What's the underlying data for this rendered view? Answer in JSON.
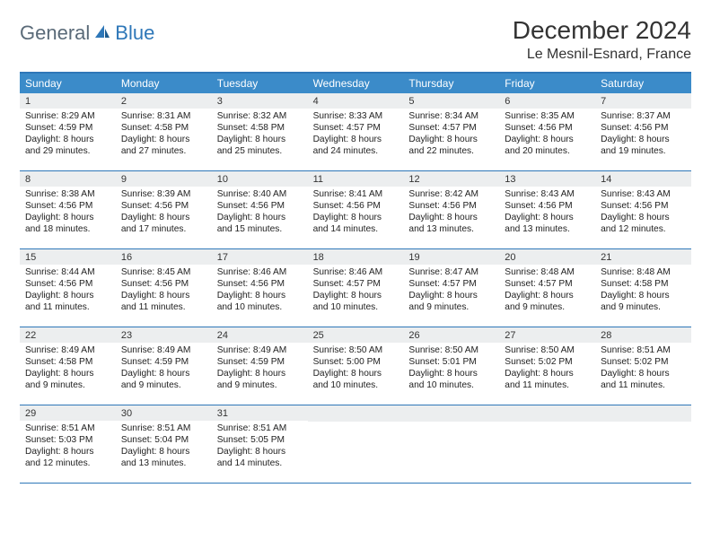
{
  "logo": {
    "general": "General",
    "blue": "Blue"
  },
  "title": "December 2024",
  "location": "Le Mesnil-Esnard, France",
  "colors": {
    "header_bg": "#3b8bc9",
    "border": "#2e77b8",
    "daynum_bg": "#eceeef",
    "text": "#222222",
    "logo_gray": "#5a6a78",
    "logo_blue": "#2e77b8"
  },
  "day_names": [
    "Sunday",
    "Monday",
    "Tuesday",
    "Wednesday",
    "Thursday",
    "Friday",
    "Saturday"
  ],
  "weeks": [
    [
      {
        "n": "1",
        "sr": "Sunrise: 8:29 AM",
        "ss": "Sunset: 4:59 PM",
        "d1": "Daylight: 8 hours",
        "d2": "and 29 minutes."
      },
      {
        "n": "2",
        "sr": "Sunrise: 8:31 AM",
        "ss": "Sunset: 4:58 PM",
        "d1": "Daylight: 8 hours",
        "d2": "and 27 minutes."
      },
      {
        "n": "3",
        "sr": "Sunrise: 8:32 AM",
        "ss": "Sunset: 4:58 PM",
        "d1": "Daylight: 8 hours",
        "d2": "and 25 minutes."
      },
      {
        "n": "4",
        "sr": "Sunrise: 8:33 AM",
        "ss": "Sunset: 4:57 PM",
        "d1": "Daylight: 8 hours",
        "d2": "and 24 minutes."
      },
      {
        "n": "5",
        "sr": "Sunrise: 8:34 AM",
        "ss": "Sunset: 4:57 PM",
        "d1": "Daylight: 8 hours",
        "d2": "and 22 minutes."
      },
      {
        "n": "6",
        "sr": "Sunrise: 8:35 AM",
        "ss": "Sunset: 4:56 PM",
        "d1": "Daylight: 8 hours",
        "d2": "and 20 minutes."
      },
      {
        "n": "7",
        "sr": "Sunrise: 8:37 AM",
        "ss": "Sunset: 4:56 PM",
        "d1": "Daylight: 8 hours",
        "d2": "and 19 minutes."
      }
    ],
    [
      {
        "n": "8",
        "sr": "Sunrise: 8:38 AM",
        "ss": "Sunset: 4:56 PM",
        "d1": "Daylight: 8 hours",
        "d2": "and 18 minutes."
      },
      {
        "n": "9",
        "sr": "Sunrise: 8:39 AM",
        "ss": "Sunset: 4:56 PM",
        "d1": "Daylight: 8 hours",
        "d2": "and 17 minutes."
      },
      {
        "n": "10",
        "sr": "Sunrise: 8:40 AM",
        "ss": "Sunset: 4:56 PM",
        "d1": "Daylight: 8 hours",
        "d2": "and 15 minutes."
      },
      {
        "n": "11",
        "sr": "Sunrise: 8:41 AM",
        "ss": "Sunset: 4:56 PM",
        "d1": "Daylight: 8 hours",
        "d2": "and 14 minutes."
      },
      {
        "n": "12",
        "sr": "Sunrise: 8:42 AM",
        "ss": "Sunset: 4:56 PM",
        "d1": "Daylight: 8 hours",
        "d2": "and 13 minutes."
      },
      {
        "n": "13",
        "sr": "Sunrise: 8:43 AM",
        "ss": "Sunset: 4:56 PM",
        "d1": "Daylight: 8 hours",
        "d2": "and 13 minutes."
      },
      {
        "n": "14",
        "sr": "Sunrise: 8:43 AM",
        "ss": "Sunset: 4:56 PM",
        "d1": "Daylight: 8 hours",
        "d2": "and 12 minutes."
      }
    ],
    [
      {
        "n": "15",
        "sr": "Sunrise: 8:44 AM",
        "ss": "Sunset: 4:56 PM",
        "d1": "Daylight: 8 hours",
        "d2": "and 11 minutes."
      },
      {
        "n": "16",
        "sr": "Sunrise: 8:45 AM",
        "ss": "Sunset: 4:56 PM",
        "d1": "Daylight: 8 hours",
        "d2": "and 11 minutes."
      },
      {
        "n": "17",
        "sr": "Sunrise: 8:46 AM",
        "ss": "Sunset: 4:56 PM",
        "d1": "Daylight: 8 hours",
        "d2": "and 10 minutes."
      },
      {
        "n": "18",
        "sr": "Sunrise: 8:46 AM",
        "ss": "Sunset: 4:57 PM",
        "d1": "Daylight: 8 hours",
        "d2": "and 10 minutes."
      },
      {
        "n": "19",
        "sr": "Sunrise: 8:47 AM",
        "ss": "Sunset: 4:57 PM",
        "d1": "Daylight: 8 hours",
        "d2": "and 9 minutes."
      },
      {
        "n": "20",
        "sr": "Sunrise: 8:48 AM",
        "ss": "Sunset: 4:57 PM",
        "d1": "Daylight: 8 hours",
        "d2": "and 9 minutes."
      },
      {
        "n": "21",
        "sr": "Sunrise: 8:48 AM",
        "ss": "Sunset: 4:58 PM",
        "d1": "Daylight: 8 hours",
        "d2": "and 9 minutes."
      }
    ],
    [
      {
        "n": "22",
        "sr": "Sunrise: 8:49 AM",
        "ss": "Sunset: 4:58 PM",
        "d1": "Daylight: 8 hours",
        "d2": "and 9 minutes."
      },
      {
        "n": "23",
        "sr": "Sunrise: 8:49 AM",
        "ss": "Sunset: 4:59 PM",
        "d1": "Daylight: 8 hours",
        "d2": "and 9 minutes."
      },
      {
        "n": "24",
        "sr": "Sunrise: 8:49 AM",
        "ss": "Sunset: 4:59 PM",
        "d1": "Daylight: 8 hours",
        "d2": "and 9 minutes."
      },
      {
        "n": "25",
        "sr": "Sunrise: 8:50 AM",
        "ss": "Sunset: 5:00 PM",
        "d1": "Daylight: 8 hours",
        "d2": "and 10 minutes."
      },
      {
        "n": "26",
        "sr": "Sunrise: 8:50 AM",
        "ss": "Sunset: 5:01 PM",
        "d1": "Daylight: 8 hours",
        "d2": "and 10 minutes."
      },
      {
        "n": "27",
        "sr": "Sunrise: 8:50 AM",
        "ss": "Sunset: 5:02 PM",
        "d1": "Daylight: 8 hours",
        "d2": "and 11 minutes."
      },
      {
        "n": "28",
        "sr": "Sunrise: 8:51 AM",
        "ss": "Sunset: 5:02 PM",
        "d1": "Daylight: 8 hours",
        "d2": "and 11 minutes."
      }
    ],
    [
      {
        "n": "29",
        "sr": "Sunrise: 8:51 AM",
        "ss": "Sunset: 5:03 PM",
        "d1": "Daylight: 8 hours",
        "d2": "and 12 minutes."
      },
      {
        "n": "30",
        "sr": "Sunrise: 8:51 AM",
        "ss": "Sunset: 5:04 PM",
        "d1": "Daylight: 8 hours",
        "d2": "and 13 minutes."
      },
      {
        "n": "31",
        "sr": "Sunrise: 8:51 AM",
        "ss": "Sunset: 5:05 PM",
        "d1": "Daylight: 8 hours",
        "d2": "and 14 minutes."
      },
      null,
      null,
      null,
      null
    ]
  ]
}
